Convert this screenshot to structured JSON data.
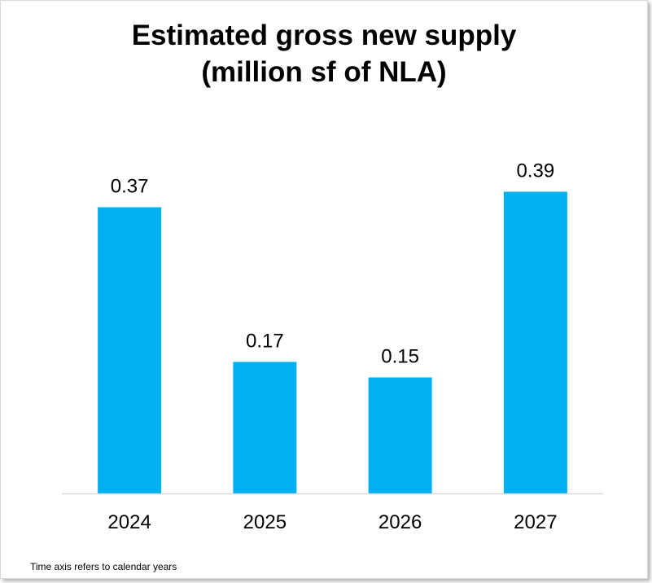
{
  "chart_data": {
    "type": "bar",
    "title_lines": [
      "Estimated gross new supply",
      "(million sf of NLA)"
    ],
    "categories": [
      "2024",
      "2025",
      "2026",
      "2027"
    ],
    "values": [
      0.37,
      0.17,
      0.15,
      0.39
    ],
    "data_labels": [
      "0.37",
      "0.17",
      "0.15",
      "0.39"
    ],
    "ylim": [
      0,
      0.47
    ],
    "grid": false,
    "legend": false,
    "colors": {
      "bar": "#00b0f0",
      "axis": "#d9d9d9",
      "text": "#000000"
    }
  },
  "footnote": "Time axis refers to calendar years"
}
